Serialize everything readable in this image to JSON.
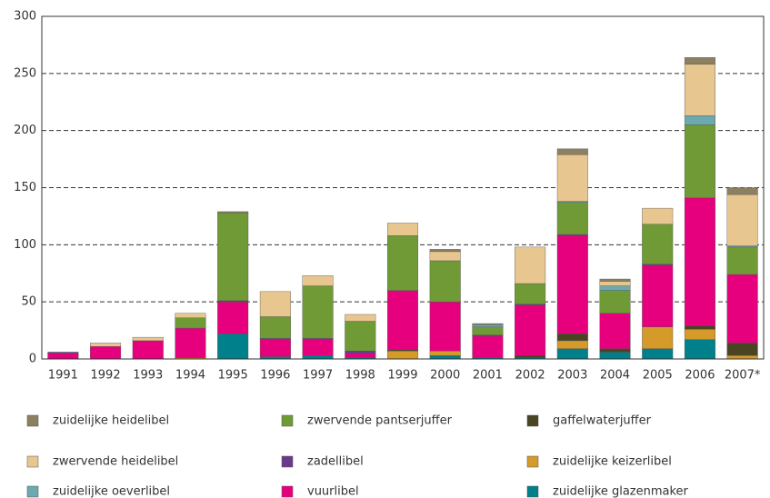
{
  "chart_data": {
    "type": "bar",
    "stacked": true,
    "legend": "bottom",
    "categories": [
      "1991",
      "1992",
      "1993",
      "1994",
      "1995",
      "1996",
      "1997",
      "1998",
      "1999",
      "2000",
      "2001",
      "2002",
      "2003",
      "2004",
      "2005",
      "2006",
      "2007*"
    ],
    "ylim": [
      0,
      300
    ],
    "yticks": [
      0,
      50,
      100,
      150,
      200,
      250,
      300
    ],
    "grid": true,
    "series": [
      {
        "name": "zuidelijke heidelibel",
        "color": "#8c8060",
        "values": [
          0,
          0,
          0,
          0,
          1,
          0,
          0,
          0,
          0,
          2,
          1,
          0,
          5,
          2,
          0,
          6,
          6
        ]
      },
      {
        "name": "zwervende heidelibel",
        "color": "#e8c690",
        "values": [
          0,
          3,
          3,
          4,
          0,
          22,
          9,
          6,
          11,
          8,
          0,
          32,
          41,
          4,
          14,
          45,
          45
        ]
      },
      {
        "name": "zuidelijke oeverlibel",
        "color": "#6aaab0",
        "values": [
          0,
          0,
          0,
          0,
          0,
          0,
          0,
          0,
          0,
          0,
          2,
          0,
          1,
          4,
          0,
          8,
          1
        ]
      },
      {
        "name": "zwervende pantserjuffer",
        "color": "#6f9a35",
        "values": [
          0,
          0,
          0,
          9,
          77,
          19,
          46,
          26,
          48,
          36,
          7,
          18,
          28,
          20,
          35,
          64,
          24
        ]
      },
      {
        "name": "zadellibel",
        "color": "#6a3a8a",
        "values": [
          1,
          0,
          0,
          0,
          1,
          1,
          1,
          2,
          0,
          0,
          1,
          1,
          1,
          0,
          1,
          0,
          0
        ]
      },
      {
        "name": "vuurlibel",
        "color": "#e6007e",
        "values": [
          5,
          11,
          16,
          26,
          28,
          15,
          14,
          4,
          52,
          43,
          19,
          44,
          86,
          31,
          54,
          112,
          60
        ]
      },
      {
        "name": "gaffelwaterjuffer",
        "color": "#4a4422",
        "values": [
          0,
          0,
          0,
          0,
          0,
          0,
          0,
          0,
          1,
          0,
          0,
          2,
          6,
          3,
          0,
          3,
          11
        ]
      },
      {
        "name": "zuidelijke keizerlibel",
        "color": "#d49a2a",
        "values": [
          0,
          0,
          0,
          1,
          0,
          0,
          0,
          0,
          7,
          4,
          0,
          0,
          7,
          0,
          19,
          9,
          3
        ]
      },
      {
        "name": "zuidelijke glazenmaker",
        "color": "#00808a",
        "values": [
          0,
          0,
          0,
          0,
          22,
          2,
          3,
          1,
          0,
          3,
          1,
          1,
          9,
          6,
          9,
          17,
          0
        ]
      }
    ]
  }
}
